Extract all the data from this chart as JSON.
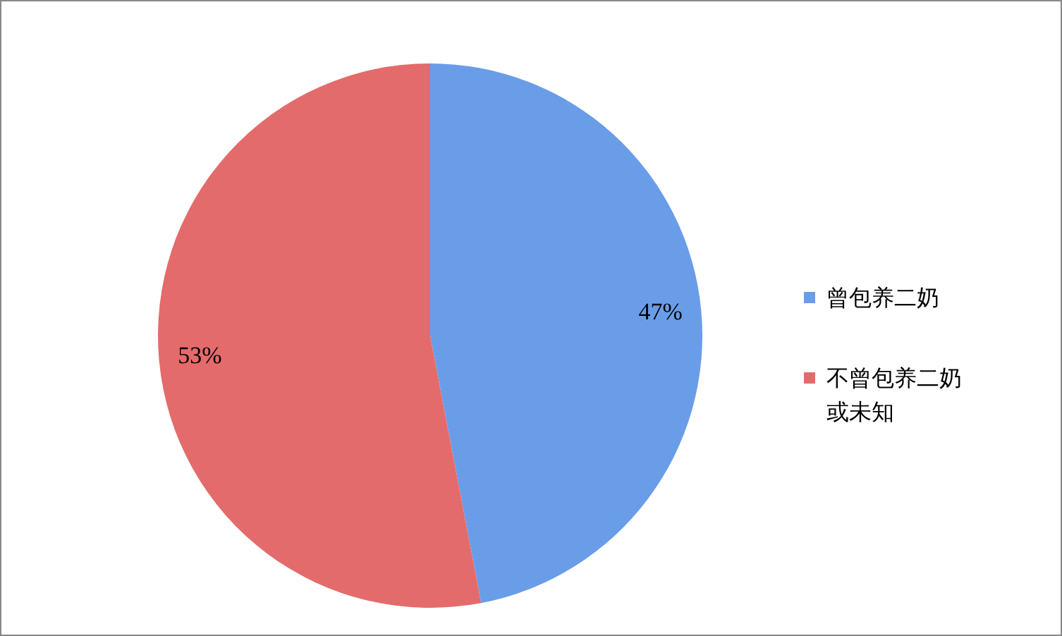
{
  "chart_data": {
    "type": "pie",
    "categories": [
      "曾包养二奶",
      "不曾包养二奶或未知"
    ],
    "values": [
      47,
      53
    ],
    "colors": [
      "#6a9de8",
      "#e46b6b"
    ],
    "value_labels": [
      "47%",
      "53%"
    ],
    "legend": "right"
  }
}
